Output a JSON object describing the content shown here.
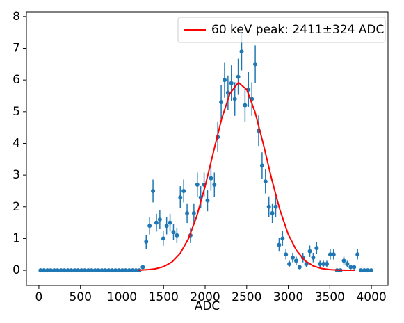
{
  "chart_data": {
    "type": "errorbar",
    "xlabel": "ADC",
    "xlim": [
      -150,
      4200
    ],
    "ylim": [
      -0.48,
      8.15
    ],
    "xticks": [
      0,
      500,
      1000,
      1500,
      2000,
      2500,
      3000,
      3500,
      4000
    ],
    "yticks": [
      0,
      1,
      2,
      3,
      4,
      5,
      6,
      7,
      8
    ],
    "legend": "upper right",
    "series": [
      {
        "kind": "points",
        "color": "#1f77b4",
        "x": [
          20,
          61,
          102,
          143,
          184,
          225,
          266,
          307,
          348,
          389,
          430,
          471,
          512,
          553,
          594,
          635,
          676,
          717,
          758,
          799,
          840,
          881,
          922,
          963,
          1004,
          1045,
          1086,
          1127,
          1168,
          1209,
          1250,
          1291,
          1332,
          1373,
          1414,
          1455,
          1496,
          1537,
          1578,
          1619,
          1660,
          1701,
          1742,
          1783,
          1824,
          1865,
          1906,
          1947,
          1988,
          2029,
          2070,
          2111,
          2152,
          2193,
          2234,
          2275,
          2316,
          2357,
          2398,
          2439,
          2480,
          2521,
          2562,
          2603,
          2644,
          2685,
          2726,
          2767,
          2808,
          2849,
          2890,
          2931,
          2972,
          3013,
          3054,
          3095,
          3136,
          3177,
          3218,
          3259,
          3300,
          3341,
          3382,
          3423,
          3464,
          3505,
          3546,
          3587,
          3628,
          3669,
          3710,
          3751,
          3792,
          3833,
          3874,
          3915,
          3956,
          3997
        ],
        "values": [
          0,
          0,
          0,
          0,
          0,
          0,
          0,
          0,
          0,
          0,
          0,
          0,
          0,
          0,
          0,
          0,
          0,
          0,
          0,
          0,
          0,
          0,
          0,
          0,
          0,
          0,
          0,
          0,
          0,
          0,
          0.1,
          0.9,
          1.4,
          2.5,
          1.5,
          1.6,
          1.0,
          1.4,
          1.5,
          1.2,
          1.1,
          2.3,
          2.5,
          1.8,
          1.1,
          1.8,
          2.7,
          2.3,
          2.7,
          2.2,
          2.9,
          2.7,
          4.2,
          5.3,
          6.0,
          5.6,
          5.9,
          5.4,
          6.1,
          6.9,
          5.2,
          5.7,
          5.4,
          6.5,
          4.4,
          3.3,
          2.8,
          2.0,
          1.8,
          2.0,
          0.8,
          1.0,
          0.5,
          0.2,
          0.4,
          0.3,
          0.1,
          0.4,
          0.2,
          0.6,
          0.4,
          0.7,
          0.2,
          0.2,
          0.2,
          0.5,
          0.5,
          0,
          0,
          0.3,
          0.2,
          0.1,
          0.1,
          0.5,
          0,
          0,
          0,
          0
        ],
        "errors": [
          0,
          0,
          0,
          0,
          0,
          0,
          0,
          0,
          0,
          0,
          0,
          0,
          0,
          0,
          0,
          0,
          0,
          0,
          0,
          0,
          0,
          0,
          0,
          0,
          0,
          0,
          0,
          0,
          0,
          0,
          0.07,
          0.22,
          0.27,
          0.36,
          0.28,
          0.29,
          0.23,
          0.27,
          0.28,
          0.25,
          0.24,
          0.35,
          0.36,
          0.31,
          0.24,
          0.31,
          0.38,
          0.35,
          0.38,
          0.34,
          0.39,
          0.38,
          0.47,
          0.53,
          0.56,
          0.54,
          0.56,
          0.53,
          0.57,
          0.6,
          0.52,
          0.55,
          0.53,
          0.59,
          0.48,
          0.42,
          0.38,
          0.33,
          0.31,
          0.33,
          0.21,
          0.23,
          0.16,
          0.1,
          0.15,
          0.13,
          0.07,
          0.15,
          0.1,
          0.18,
          0.15,
          0.19,
          0.1,
          0.1,
          0.1,
          0.16,
          0.16,
          0,
          0,
          0.13,
          0.1,
          0.07,
          0.07,
          0.16,
          0,
          0,
          0,
          0
        ]
      },
      {
        "kind": "line",
        "name": "60 keV peak: 2411±324 ADC",
        "color": "#ff0000",
        "x": [
          1200,
          1300,
          1400,
          1500,
          1600,
          1700,
          1800,
          1900,
          2000,
          2100,
          2200,
          2300,
          2400,
          2500,
          2600,
          2700,
          2800,
          2900,
          3000,
          3100,
          3200,
          3300,
          3400,
          3500,
          3600,
          3700,
          3800
        ],
        "values": [
          0.005,
          0.017,
          0.046,
          0.114,
          0.258,
          0.533,
          1.0,
          1.71,
          2.65,
          3.73,
          4.79,
          5.58,
          5.92,
          5.7,
          4.99,
          3.98,
          2.88,
          1.9,
          1.13,
          0.62,
          0.305,
          0.137,
          0.056,
          0.021,
          0.007,
          0.002,
          0.0005
        ]
      }
    ]
  }
}
